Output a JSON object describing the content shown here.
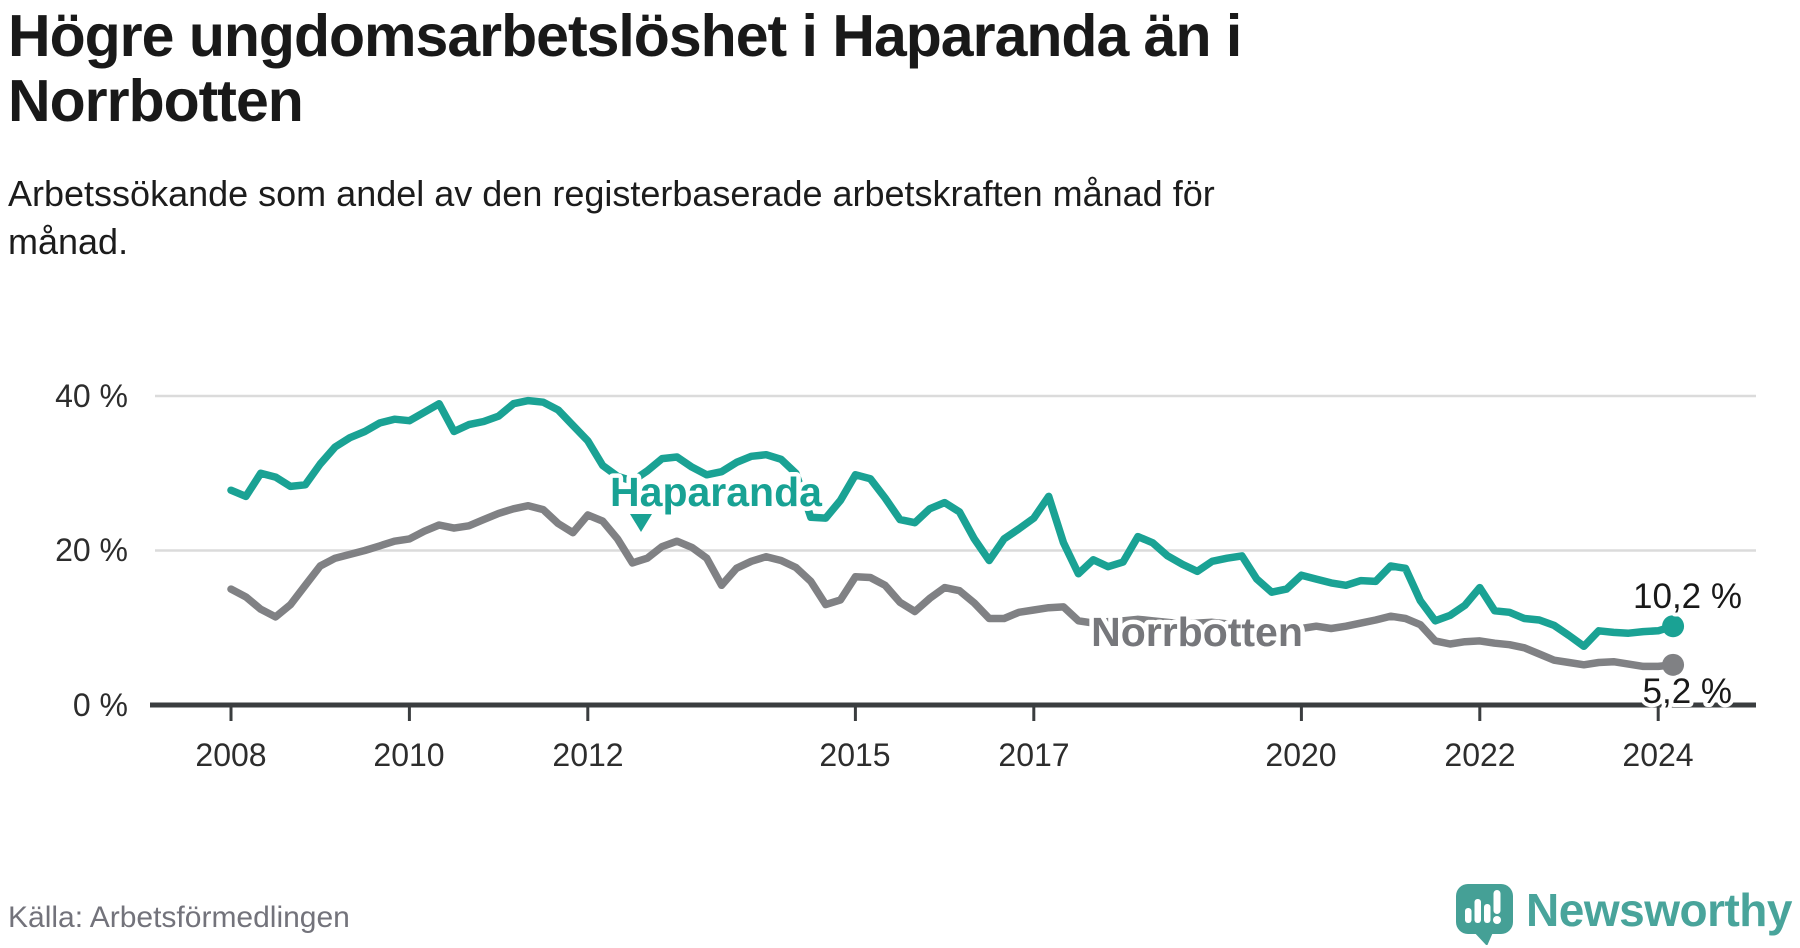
{
  "header": {
    "title_lines": [
      "Högre ungdomsarbetslöshet i Haparanda än i",
      "Norrbotten"
    ],
    "subtitle_lines": [
      "Arbetssökande som andel av den registerbaserade arbetskraften månad för",
      "månad."
    ]
  },
  "footer": {
    "source": "Källa: Arbetsförmedlingen",
    "brand_name": "Newsworthy",
    "brand_icon": "newsworthy-speech-bubble-chart-icon"
  },
  "colors": {
    "haparanda": "#1AA294",
    "norrbotten": "#808184",
    "norrbotten_label": "#76777B",
    "axis": "#3A3D3F",
    "grid": "#DBDBDB",
    "text": "#191919",
    "muted": "#73737B",
    "brand": "#49A49B"
  },
  "chart_data": {
    "type": "line",
    "title": "Högre ungdomsarbetslöshet i Haparanda än i Norrbotten",
    "subtitle": "Arbetssökande som andel av den registerbaserade arbetskraften månad för månad.",
    "xlabel": "",
    "ylabel": "",
    "unit": "%",
    "ylim": [
      0,
      42
    ],
    "xlim": [
      2007.1,
      2025.1
    ],
    "grid": "horizontal",
    "legend": "inline-labels",
    "x_start": 2008,
    "x_step_months": 2,
    "x_end": "2024 (early)",
    "x_ticks": [
      {
        "year": 2008,
        "label": "2008"
      },
      {
        "year": 2010,
        "label": "2010"
      },
      {
        "year": 2012,
        "label": "2012"
      },
      {
        "year": 2015,
        "label": "2015"
      },
      {
        "year": 2017,
        "label": "2017"
      },
      {
        "year": 2020,
        "label": "2020"
      },
      {
        "year": 2022,
        "label": "2022"
      },
      {
        "year": 2024,
        "label": "2024"
      }
    ],
    "y_ticks": [
      {
        "value": 0,
        "label": "0 %"
      },
      {
        "value": 20,
        "label": "20 %"
      },
      {
        "value": 40,
        "label": "40 %"
      }
    ],
    "series": [
      {
        "name": "Haparanda",
        "color": "#1AA294",
        "end_label": "10,2 %",
        "end_value": 10.2,
        "values": [
          27.8,
          27.0,
          30.0,
          29.5,
          28.3,
          28.5,
          31.2,
          33.4,
          34.6,
          35.4,
          36.5,
          37.0,
          36.8,
          37.9,
          39.0,
          35.4,
          36.3,
          36.7,
          37.4,
          39.0,
          39.4,
          39.2,
          38.2,
          36.2,
          34.2,
          31.0,
          29.6,
          29.0,
          30.3,
          31.9,
          32.1,
          30.8,
          29.8,
          30.2,
          31.4,
          32.2,
          32.4,
          31.8,
          30.0,
          24.3,
          24.2,
          26.5,
          29.8,
          29.3,
          26.8,
          24.0,
          23.6,
          25.4,
          26.2,
          25.0,
          21.5,
          18.7,
          21.5,
          22.8,
          24.2,
          27.0,
          21.0,
          17.0,
          18.8,
          17.9,
          18.5,
          21.8,
          21.0,
          19.3,
          18.2,
          17.3,
          18.6,
          19.0,
          19.3,
          16.3,
          14.6,
          15.0,
          16.8,
          16.3,
          15.8,
          15.5,
          16.1,
          16.0,
          18.0,
          17.7,
          13.5,
          10.9,
          11.6,
          12.9,
          15.2,
          12.2,
          12.0,
          11.2,
          11.0,
          10.3,
          9.0,
          7.6,
          9.6,
          9.4,
          9.3,
          9.5,
          9.6,
          10.2
        ]
      },
      {
        "name": "Norrbotten",
        "color": "#808184",
        "end_label": "5,2 %",
        "end_value": 5.2,
        "values": [
          15.0,
          14.0,
          12.4,
          11.4,
          13.0,
          15.5,
          18.0,
          19.0,
          19.5,
          20.0,
          20.6,
          21.2,
          21.5,
          22.5,
          23.3,
          22.9,
          23.2,
          24.0,
          24.8,
          25.4,
          25.8,
          25.3,
          23.5,
          22.3,
          24.6,
          23.8,
          21.5,
          18.4,
          19.0,
          20.5,
          21.2,
          20.4,
          19.0,
          15.5,
          17.7,
          18.6,
          19.2,
          18.7,
          17.8,
          16.0,
          13.0,
          13.6,
          16.6,
          16.5,
          15.5,
          13.3,
          12.1,
          13.8,
          15.2,
          14.8,
          13.2,
          11.2,
          11.2,
          12.0,
          12.3,
          12.6,
          12.7,
          10.9,
          10.6,
          10.8,
          10.9,
          11.1,
          10.9,
          10.7,
          10.5,
          10.6,
          10.7,
          10.5,
          10.3,
          10.0,
          9.8,
          9.8,
          9.9,
          10.2,
          9.9,
          10.2,
          10.6,
          11.0,
          11.5,
          11.2,
          10.4,
          8.3,
          7.9,
          8.2,
          8.3,
          8.0,
          7.8,
          7.4,
          6.6,
          5.8,
          5.5,
          5.2,
          5.5,
          5.6,
          5.3,
          5.0,
          5.0,
          5.2
        ]
      }
    ]
  }
}
